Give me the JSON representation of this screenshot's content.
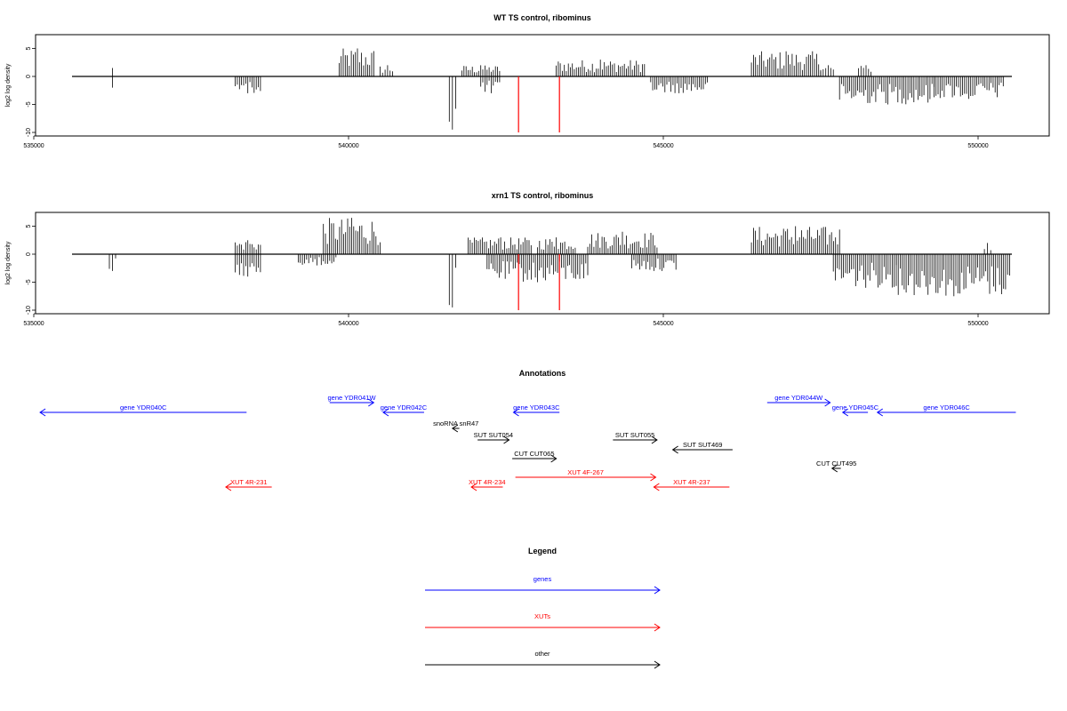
{
  "chart_data": [
    {
      "type": "bar",
      "title": "WT TS control, ribominus",
      "ylabel": "log2 log density",
      "xlim": [
        535000,
        551000
      ],
      "ylim": [
        -10,
        7
      ],
      "xticks": [
        535000,
        540000,
        545000,
        550000
      ],
      "yticks": [
        5,
        0,
        -5,
        -10
      ],
      "positive_clusters": [
        {
          "x": [
            536250,
            536250
          ],
          "max": 1.5
        },
        {
          "x": [
            539850,
            540400
          ],
          "max": 5
        },
        {
          "x": [
            540500,
            540700
          ],
          "max": 2
        },
        {
          "x": [
            541800,
            542400
          ],
          "max": 2
        },
        {
          "x": [
            543300,
            544700
          ],
          "max": 3
        },
        {
          "x": [
            546400,
            547500
          ],
          "max": 4.5
        },
        {
          "x": [
            547500,
            547700
          ],
          "max": 2
        },
        {
          "x": [
            548100,
            548300
          ],
          "max": 2
        }
      ],
      "negative_clusters": [
        {
          "x": [
            536250,
            536250
          ],
          "min": -2
        },
        {
          "x": [
            538200,
            538600
          ],
          "min": -3
        },
        {
          "x": [
            541600,
            541700
          ],
          "min": -9.5
        },
        {
          "x": [
            542100,
            542400
          ],
          "min": -3
        },
        {
          "x": [
            544800,
            545700
          ],
          "min": -3
        },
        {
          "x": [
            547800,
            549300
          ],
          "min": -5
        },
        {
          "x": [
            549300,
            550400
          ],
          "min": -4
        }
      ],
      "markers": [
        {
          "x": 542700,
          "y": -10,
          "color": "#ff0000"
        },
        {
          "x": 543350,
          "y": -10,
          "color": "#ff0000"
        }
      ]
    },
    {
      "type": "bar",
      "title": "xrn1 TS control, ribominus",
      "ylabel": "log2 log density",
      "xlim": [
        535000,
        551000
      ],
      "ylim": [
        -10,
        7
      ],
      "xticks": [
        535000,
        540000,
        545000,
        550000
      ],
      "yticks": [
        5,
        0,
        -5,
        -10
      ],
      "positive_clusters": [
        {
          "x": [
            538200,
            538600
          ],
          "max": 2.5
        },
        {
          "x": [
            539600,
            540500
          ],
          "max": 6.5
        },
        {
          "x": [
            541900,
            542900
          ],
          "max": 3
        },
        {
          "x": [
            543000,
            543600
          ],
          "max": 3
        },
        {
          "x": [
            543800,
            544900
          ],
          "max": 4
        },
        {
          "x": [
            546400,
            547800
          ],
          "max": 5
        },
        {
          "x": [
            550100,
            550200
          ],
          "max": 2
        }
      ],
      "negative_clusters": [
        {
          "x": [
            536200,
            536300
          ],
          "min": -3
        },
        {
          "x": [
            538200,
            538600
          ],
          "min": -4
        },
        {
          "x": [
            539200,
            539800
          ],
          "min": -2
        },
        {
          "x": [
            541600,
            541700
          ],
          "min": -9.5
        },
        {
          "x": [
            542200,
            543800
          ],
          "min": -5
        },
        {
          "x": [
            544500,
            545200
          ],
          "min": -3
        },
        {
          "x": [
            547700,
            548700
          ],
          "min": -6
        },
        {
          "x": [
            548700,
            550500
          ],
          "min": -7.5
        }
      ],
      "markers": [
        {
          "x": 542700,
          "y": -10,
          "color": "#ff0000"
        },
        {
          "x": 543350,
          "y": -10,
          "color": "#ff0000"
        }
      ]
    }
  ],
  "annotations": {
    "title": "Annotations",
    "features": [
      {
        "label": "gene YDR040C",
        "start": 538380,
        "end": 535100,
        "row": 1,
        "color": "#0000ff"
      },
      {
        "label": "gene YDR041W",
        "start": 539700,
        "end": 540400,
        "row": 0,
        "color": "#0000ff"
      },
      {
        "label": "gene YDR042C",
        "start": 541200,
        "end": 540550,
        "row": 1,
        "color": "#0000ff"
      },
      {
        "label": "gene YDR043C",
        "start": 543350,
        "end": 542620,
        "row": 1,
        "color": "#0000ff"
      },
      {
        "label": "gene YDR044W",
        "start": 546650,
        "end": 547650,
        "row": 0,
        "color": "#0000ff"
      },
      {
        "label": "gene YDR045C",
        "start": 548250,
        "end": 547850,
        "row": 1,
        "color": "#0000ff"
      },
      {
        "label": "gene YDR046C",
        "start": 550600,
        "end": 548400,
        "row": 1,
        "color": "#0000ff"
      },
      {
        "label": "snoRNA snR47",
        "start": 541760,
        "end": 541650,
        "row": 2,
        "color": "#000000"
      },
      {
        "label": "SUT SUT054",
        "start": 542050,
        "end": 542550,
        "row": 3,
        "color": "#000000"
      },
      {
        "label": "SUT SUT055",
        "start": 544200,
        "end": 544900,
        "row": 3,
        "color": "#000000"
      },
      {
        "label": "SUT SUT469",
        "start": 546100,
        "end": 545150,
        "row": 4,
        "color": "#000000"
      },
      {
        "label": "CUT CUT065",
        "start": 542600,
        "end": 543300,
        "row": 5,
        "color": "#000000"
      },
      {
        "label": "CUT CUT495",
        "start": 547820,
        "end": 547680,
        "row": 6,
        "color": "#000000"
      },
      {
        "label": "XUT 4F-267",
        "start": 542650,
        "end": 544880,
        "row": 7,
        "color": "#ff0000"
      },
      {
        "label": "XUT 4R-231",
        "start": 538780,
        "end": 538050,
        "row": 8,
        "color": "#ff0000"
      },
      {
        "label": "XUT 4R-234",
        "start": 542450,
        "end": 541950,
        "row": 8,
        "color": "#ff0000"
      },
      {
        "label": "XUT 4R-237",
        "start": 546050,
        "end": 544850,
        "row": 8,
        "color": "#ff0000"
      }
    ]
  },
  "legend": {
    "title": "Legend",
    "items": [
      {
        "label": "genes",
        "color": "#0000ff"
      },
      {
        "label": "XUTs",
        "color": "#ff0000"
      },
      {
        "label": "other",
        "color": "#000000"
      }
    ]
  }
}
